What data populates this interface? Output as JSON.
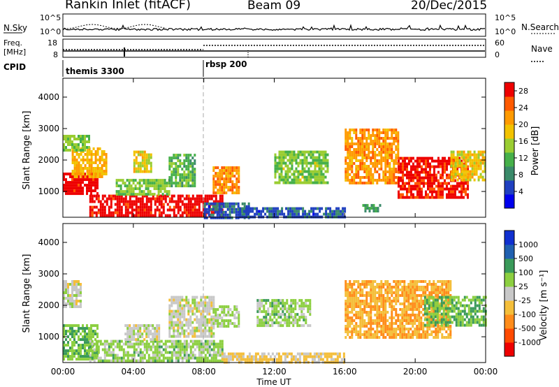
{
  "header": {
    "station": "Rankin Inlet (fitACF)",
    "beam": "Beam 09",
    "date": "20/Dec/2015"
  },
  "noise_panel": {
    "left_label": "N.Sky",
    "right_label": "N.Search",
    "left_ticks": [
      "10^5",
      "10^0"
    ],
    "right_ticks": [
      "10^5",
      "10^0"
    ]
  },
  "freq_panel": {
    "left_label_line1": "Freq.",
    "left_label_line2": "[MHz]",
    "left_ticks": [
      "18",
      "8"
    ],
    "right_ticks": [
      "60",
      "0"
    ],
    "right_label": "Nave"
  },
  "cpid": {
    "label": "CPID",
    "entries": [
      {
        "text": "themis 3300",
        "start_hour": 0
      },
      {
        "text": "rbsp 200",
        "start_hour": 8.1
      }
    ]
  },
  "colors": {
    "power": [
      "#0000ee",
      "#2040c0",
      "#3a8a6a",
      "#46b04a",
      "#9acd32",
      "#f2c200",
      "#ff9a00",
      "#ff5a00",
      "#ee0000"
    ],
    "velocity": [
      "#ee0000",
      "#ff4a00",
      "#ff8c1a",
      "#f4be3a",
      "#c8c8c8",
      "#8ccf40",
      "#3a9a5a",
      "#2060b0",
      "#1030d0"
    ]
  },
  "chart_data": [
    {
      "type": "heatmap",
      "title": "Power",
      "ylabel": "Slant Range [km]",
      "ylim": [
        180,
        4600
      ],
      "xlim": [
        0,
        24
      ],
      "yticks": [
        "1000",
        "2000",
        "3000",
        "4000"
      ],
      "xticks": [
        "00:00",
        "04:00",
        "08:00",
        "12:00",
        "16:00",
        "20:00",
        "00:00"
      ],
      "colorbar": {
        "label": "Power [dB]",
        "ticks": [
          "4",
          "8",
          "12",
          "16",
          "20",
          "24",
          "28"
        ],
        "range": [
          0,
          30
        ]
      },
      "regions": [
        {
          "x": [
            0.0,
            2.0
          ],
          "y": [
            900,
            1600
          ],
          "value": 29
        },
        {
          "x": [
            0.5,
            2.5
          ],
          "y": [
            1500,
            2400
          ],
          "value": 20
        },
        {
          "x": [
            0.0,
            1.5
          ],
          "y": [
            2300,
            2800
          ],
          "value": 14
        },
        {
          "x": [
            1.5,
            9.0
          ],
          "y": [
            250,
            900
          ],
          "value": 29
        },
        {
          "x": [
            3.0,
            6.0
          ],
          "y": [
            900,
            1400
          ],
          "value": 14
        },
        {
          "x": [
            4.0,
            5.0
          ],
          "y": [
            1600,
            2300
          ],
          "value": 18
        },
        {
          "x": [
            6.0,
            7.5
          ],
          "y": [
            1200,
            2200
          ],
          "value": 12
        },
        {
          "x": [
            8.0,
            10.5
          ],
          "y": [
            200,
            650
          ],
          "value": 6
        },
        {
          "x": [
            8.5,
            10.0
          ],
          "y": [
            1000,
            1800
          ],
          "value": 22
        },
        {
          "x": [
            10.0,
            16.0
          ],
          "y": [
            200,
            500
          ],
          "value": 6
        },
        {
          "x": [
            12.0,
            15.0
          ],
          "y": [
            1300,
            2300
          ],
          "value": 14
        },
        {
          "x": [
            16.0,
            19.0
          ],
          "y": [
            1300,
            3000
          ],
          "value": 22
        },
        {
          "x": [
            17.0,
            18.0
          ],
          "y": [
            350,
            600
          ],
          "value": 10
        },
        {
          "x": [
            19.0,
            23.0
          ],
          "y": [
            800,
            2100
          ],
          "value": 28
        },
        {
          "x": [
            22.0,
            24.0
          ],
          "y": [
            1400,
            2300
          ],
          "value": 18
        }
      ]
    },
    {
      "type": "heatmap",
      "title": "Velocity",
      "ylabel": "Slant Range [km]",
      "xlabel": "Time UT",
      "ylim": [
        180,
        4600
      ],
      "xlim": [
        0,
        24
      ],
      "yticks": [
        "1000",
        "2000",
        "3000",
        "4000"
      ],
      "xticks": [
        "00:00",
        "04:00",
        "08:00",
        "12:00",
        "16:00",
        "20:00",
        "00:00"
      ],
      "colorbar": {
        "label": "Velocity [m s⁻¹]",
        "ticks": [
          "1000",
          "500",
          "100",
          "25",
          "-25",
          "-100",
          "-500",
          "-1000"
        ],
        "range": [
          -1000,
          1000
        ]
      },
      "regions": [
        {
          "x": [
            0.0,
            2.0
          ],
          "y": [
            300,
            1400
          ],
          "value": 300
        },
        {
          "x": [
            0.0,
            1.0
          ],
          "y": [
            2000,
            2800
          ],
          "value": 0
        },
        {
          "x": [
            1.5,
            9.0
          ],
          "y": [
            250,
            900
          ],
          "value": 200
        },
        {
          "x": [
            3.5,
            5.5
          ],
          "y": [
            900,
            1400
          ],
          "value": 0
        },
        {
          "x": [
            6.0,
            8.5
          ],
          "y": [
            1000,
            2300
          ],
          "value": 0
        },
        {
          "x": [
            8.5,
            10.0
          ],
          "y": [
            1300,
            2000
          ],
          "value": 150
        },
        {
          "x": [
            9.0,
            16.0
          ],
          "y": [
            200,
            500
          ],
          "value": -150
        },
        {
          "x": [
            11.0,
            14.0
          ],
          "y": [
            1400,
            2200
          ],
          "value": 200
        },
        {
          "x": [
            16.0,
            22.0
          ],
          "y": [
            1000,
            2800
          ],
          "value": -300
        },
        {
          "x": [
            20.5,
            24.0
          ],
          "y": [
            1400,
            2300
          ],
          "value": 300
        }
      ]
    }
  ]
}
